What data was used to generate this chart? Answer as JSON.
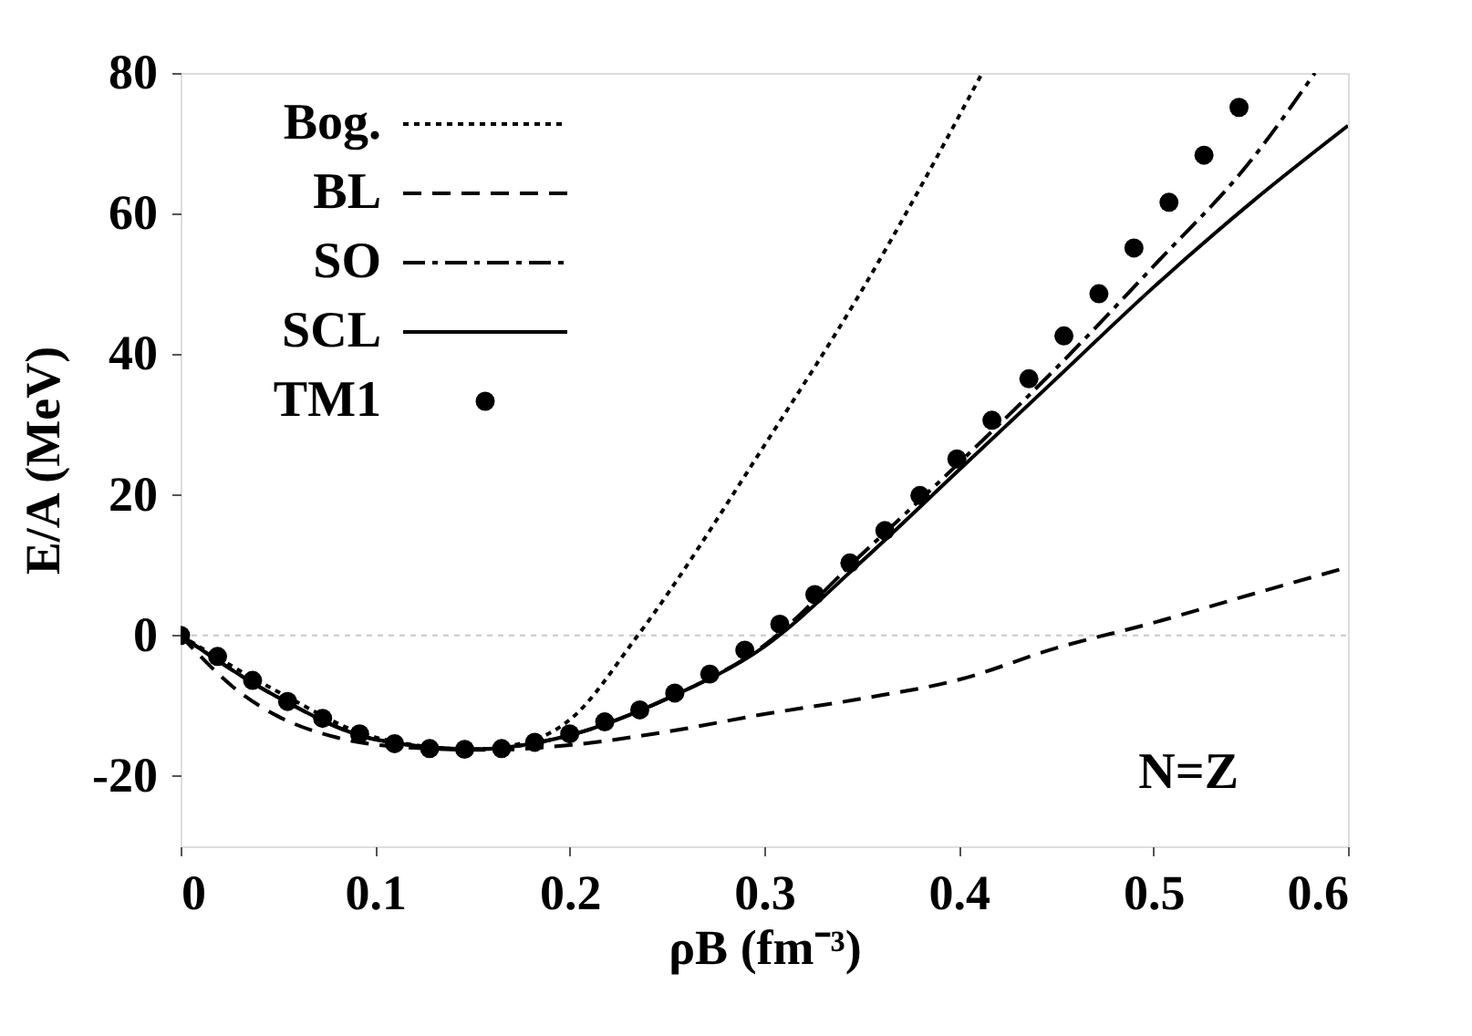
{
  "chart_data": {
    "type": "line",
    "xlabel": "ρB (fm⁻³)",
    "ylabel": "E/A (MeV)",
    "xlim": [
      0,
      0.6
    ],
    "xticks": [
      0,
      0.1,
      0.2,
      0.3,
      0.4,
      0.5,
      0.6
    ],
    "ylim": [
      -30,
      80
    ],
    "yticks": [
      -20,
      0,
      20,
      40,
      60,
      80
    ],
    "grid": false,
    "legend": "top left",
    "ref_lines": [
      {
        "axis": "y",
        "value": 0,
        "color": "#c8c8c8",
        "line_style": "dotted"
      }
    ],
    "annotations": [
      "N=Z"
    ],
    "series": [
      {
        "name": "Bog.",
        "color": "#000000",
        "line_style": "dotted",
        "x": [
          0,
          0.05,
          0.1,
          0.15,
          0.18,
          0.2,
          0.235,
          0.3,
          0.35,
          0.412
        ],
        "values": [
          0,
          -8,
          -14.5,
          -16.2,
          -15,
          -12,
          0,
          27,
          49,
          80
        ]
      },
      {
        "name": "BL",
        "color": "#000000",
        "line_style": "dashed",
        "x": [
          0,
          0.03,
          0.05,
          0.08,
          0.12,
          0.16,
          0.2,
          0.25,
          0.3,
          0.35,
          0.4,
          0.45,
          0.5,
          0.55,
          0.6
        ],
        "values": [
          0,
          -8,
          -11.5,
          -14.5,
          -16,
          -16.3,
          -15.6,
          -13.7,
          -11.2,
          -9,
          -6.3,
          -1.8,
          1.8,
          5.8,
          9.7
        ]
      },
      {
        "name": "SO",
        "color": "#000000",
        "line_style": "dashdot",
        "x": [
          0,
          0.05,
          0.1,
          0.15,
          0.2,
          0.25,
          0.3,
          0.35,
          0.4,
          0.45,
          0.5,
          0.55,
          0.583
        ],
        "values": [
          0,
          -8.8,
          -14.8,
          -16.2,
          -14.2,
          -9,
          -1.4,
          11.5,
          24.5,
          38,
          52.5,
          67.5,
          80
        ]
      },
      {
        "name": "SCL",
        "color": "#000000",
        "line_style": "solid",
        "x": [
          0,
          0.05,
          0.1,
          0.15,
          0.2,
          0.25,
          0.3,
          0.35,
          0.4,
          0.45,
          0.5,
          0.55,
          0.6
        ],
        "values": [
          0,
          -8.8,
          -14.8,
          -16.2,
          -14.2,
          -9,
          -1.6,
          10.5,
          23.5,
          36.5,
          49.5,
          61.5,
          72.5
        ]
      },
      {
        "name": "TM1",
        "color": "#000000",
        "type": "scatter",
        "marker": "circle",
        "x": [
          0,
          0.019,
          0.037,
          0.055,
          0.073,
          0.092,
          0.11,
          0.128,
          0.146,
          0.165,
          0.182,
          0.2,
          0.218,
          0.236,
          0.254,
          0.272,
          0.29,
          0.308,
          0.326,
          0.344,
          0.362,
          0.38,
          0.399,
          0.417,
          0.436,
          0.454,
          0.472,
          0.49,
          0.508,
          0.526,
          0.544
        ],
        "values": [
          0,
          -3,
          -6.4,
          -9.4,
          -11.8,
          -14,
          -15.4,
          -16.1,
          -16.2,
          -16.1,
          -15.2,
          -14,
          -12.3,
          -10.6,
          -8.2,
          -5.5,
          -2.1,
          1.6,
          5.8,
          10.3,
          14.9,
          19.9,
          25.1,
          30.6,
          36.5,
          42.6,
          48.6,
          55.1,
          61.6,
          68.3,
          75.1
        ]
      }
    ]
  }
}
